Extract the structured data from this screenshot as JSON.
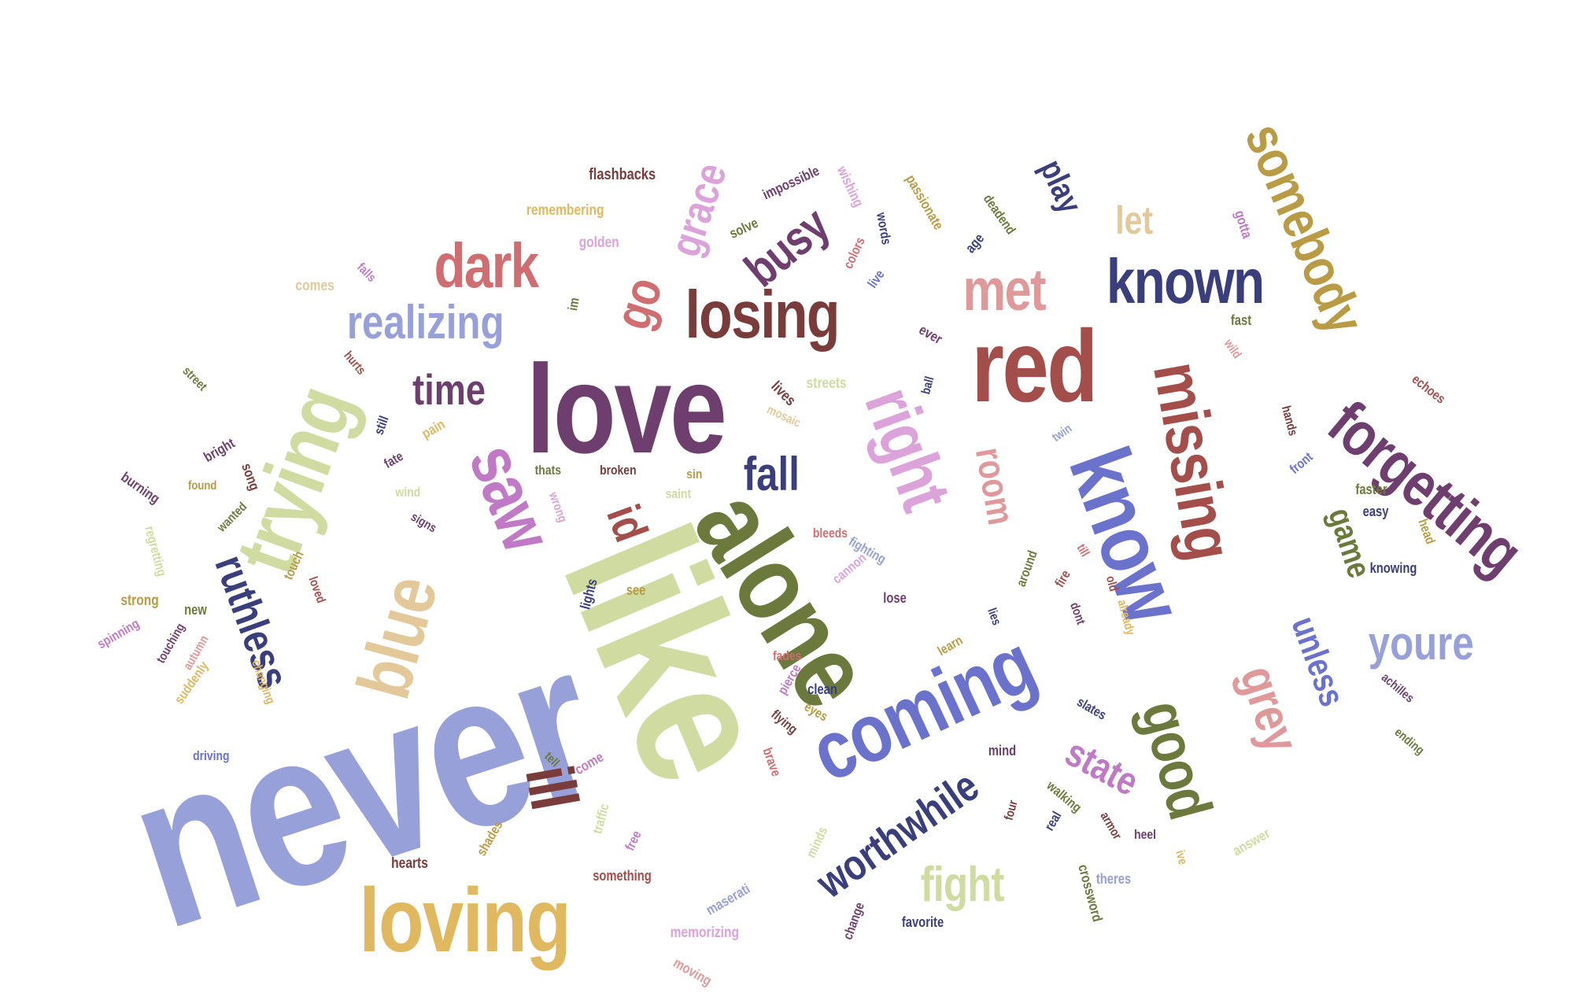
{
  "word_cloud": {
    "palette": {
      "periwinkle": "#97a0d8",
      "sage": "#cfdba0",
      "mustard": "#e0b860",
      "olive": "#6b7a3c",
      "navy": "#3a3f7c",
      "brick": "#a34e4a",
      "plum": "#6e3f6e",
      "orchid": "#c07ac5",
      "rose": "#e0999b",
      "tan": "#e3c89a",
      "lilac": "#dba3d9",
      "maroon": "#7a3b3b",
      "blue": "#6a72cc",
      "gold": "#b89b44",
      "coral": "#d06d70"
    },
    "words": [
      {
        "text": "never",
        "color": "#97a0d8"
      },
      {
        "text": "like",
        "color": "#cfdba0"
      },
      {
        "text": "loving",
        "color": "#e0b860"
      },
      {
        "text": "alone",
        "color": "#6b7a3c"
      },
      {
        "text": "love",
        "color": "#6e3f6e"
      },
      {
        "text": "red",
        "color": "#a34e4a"
      },
      {
        "text": "known",
        "color": "#3a3f7c"
      },
      {
        "text": "somebody",
        "color": "#b89b44"
      },
      {
        "text": "forgetting",
        "color": "#6e3f6e"
      },
      {
        "text": "know",
        "color": "#6a72cc"
      },
      {
        "text": "missing",
        "color": "#a34e4a"
      },
      {
        "text": "trying",
        "color": "#cfdba0"
      },
      {
        "text": "coming",
        "color": "#6a72cc"
      },
      {
        "text": "losing",
        "color": "#7a3b3b"
      },
      {
        "text": "right",
        "color": "#dba3d9"
      },
      {
        "text": "saw",
        "color": "#c07ac5"
      },
      {
        "text": "dark",
        "color": "#d06d70"
      },
      {
        "text": "blue",
        "color": "#e3c89a"
      },
      {
        "text": "good",
        "color": "#6b7a3c"
      },
      {
        "text": "grey",
        "color": "#e0999b"
      },
      {
        "text": "met",
        "color": "#e0999b"
      },
      {
        "text": "worthwhile",
        "color": "#3a3f7c"
      },
      {
        "text": "realizing",
        "color": "#97a0d8"
      },
      {
        "text": "ruthless",
        "color": "#3a3f7c"
      },
      {
        "text": "ill",
        "color": "#7a3b3b"
      },
      {
        "text": "fight",
        "color": "#cfdba0"
      },
      {
        "text": "youre",
        "color": "#97a0d8"
      },
      {
        "text": "state",
        "color": "#c07ac5"
      },
      {
        "text": "busy",
        "color": "#6e3f6e"
      },
      {
        "text": "grace",
        "color": "#dba3d9"
      },
      {
        "text": "go",
        "color": "#d06d70"
      },
      {
        "text": "play",
        "color": "#3a3f7c"
      },
      {
        "text": "room",
        "color": "#e0999b"
      },
      {
        "text": "unless",
        "color": "#6a72cc"
      },
      {
        "text": "game",
        "color": "#6b7a3c"
      },
      {
        "text": "time",
        "color": "#6e3f6e"
      },
      {
        "text": "fall",
        "color": "#3a3f7c"
      },
      {
        "text": "id",
        "color": "#a34e4a"
      },
      {
        "text": "let",
        "color": "#e3c89a"
      },
      {
        "text": "flashbacks",
        "color": "#7a3b3b"
      },
      {
        "text": "impossible",
        "color": "#6e3f6e"
      },
      {
        "text": "wishing",
        "color": "#dba3d9"
      },
      {
        "text": "passionate",
        "color": "#b89b44"
      },
      {
        "text": "remembering",
        "color": "#e0b860"
      },
      {
        "text": "solve",
        "color": "#6b7a3c"
      },
      {
        "text": "words",
        "color": "#3a3f7c"
      },
      {
        "text": "deadend",
        "color": "#6b7a3c"
      },
      {
        "text": "gotta",
        "color": "#c07ac5"
      },
      {
        "text": "golden",
        "color": "#dba3d9"
      },
      {
        "text": "colors",
        "color": "#d06d70"
      },
      {
        "text": "age",
        "color": "#3a3f7c"
      },
      {
        "text": "comes",
        "color": "#e3c89a"
      },
      {
        "text": "falls",
        "color": "#c07ac5"
      },
      {
        "text": "live",
        "color": "#6a72cc"
      },
      {
        "text": "im",
        "color": "#6b7a3c"
      },
      {
        "text": "fast",
        "color": "#6b7a3c"
      },
      {
        "text": "wild",
        "color": "#e0999b"
      },
      {
        "text": "ever",
        "color": "#6e3f6e"
      },
      {
        "text": "hurts",
        "color": "#a34e4a"
      },
      {
        "text": "street",
        "color": "#6b7a3c"
      },
      {
        "text": "ball",
        "color": "#3a3f7c"
      },
      {
        "text": "lives",
        "color": "#7a3b3b"
      },
      {
        "text": "streets",
        "color": "#cfdba0"
      },
      {
        "text": "echoes",
        "color": "#a34e4a"
      },
      {
        "text": "mosaic",
        "color": "#e3c89a"
      },
      {
        "text": "pain",
        "color": "#e0b860"
      },
      {
        "text": "still",
        "color": "#3a3f7c"
      },
      {
        "text": "hands",
        "color": "#7a3b3b"
      },
      {
        "text": "twin",
        "color": "#97a0d8"
      },
      {
        "text": "bright",
        "color": "#6e3f6e"
      },
      {
        "text": "song",
        "color": "#7a3b3b"
      },
      {
        "text": "fate",
        "color": "#6e3f6e"
      },
      {
        "text": "front",
        "color": "#6a72cc"
      },
      {
        "text": "burning",
        "color": "#6e3f6e"
      },
      {
        "text": "found",
        "color": "#b89b44"
      },
      {
        "text": "wind",
        "color": "#cfdba0"
      },
      {
        "text": "thats",
        "color": "#6b7a3c"
      },
      {
        "text": "broken",
        "color": "#7a3b3b"
      },
      {
        "text": "sin",
        "color": "#b89b44"
      },
      {
        "text": "saint",
        "color": "#cfdba0"
      },
      {
        "text": "faster",
        "color": "#6b7a3c"
      },
      {
        "text": "easy",
        "color": "#3a3f7c"
      },
      {
        "text": "head",
        "color": "#b89b44"
      },
      {
        "text": "wanted",
        "color": "#6b7a3c"
      },
      {
        "text": "wrong",
        "color": "#dba3d9"
      },
      {
        "text": "signs",
        "color": "#6e3f6e"
      },
      {
        "text": "regretting",
        "color": "#cfdba0"
      },
      {
        "text": "bleeds",
        "color": "#d06d70"
      },
      {
        "text": "fighting",
        "color": "#97a0d8"
      },
      {
        "text": "touch",
        "color": "#b89b44"
      },
      {
        "text": "cannon",
        "color": "#dba3d9"
      },
      {
        "text": "knowing",
        "color": "#3a3f7c"
      },
      {
        "text": "lights",
        "color": "#3a3f7c"
      },
      {
        "text": "around",
        "color": "#6b7a3c"
      },
      {
        "text": "fire",
        "color": "#a34e4a"
      },
      {
        "text": "till",
        "color": "#d06d70"
      },
      {
        "text": "old",
        "color": "#a34e4a"
      },
      {
        "text": "loved",
        "color": "#a34e4a"
      },
      {
        "text": "see",
        "color": "#b89b44"
      },
      {
        "text": "lose",
        "color": "#6e3f6e"
      },
      {
        "text": "strong",
        "color": "#b89b44"
      },
      {
        "text": "new",
        "color": "#6b7a3c"
      },
      {
        "text": "lies",
        "color": "#3a3f7c"
      },
      {
        "text": "dont",
        "color": "#6e3f6e"
      },
      {
        "text": "already",
        "color": "#e0b860"
      },
      {
        "text": "spinning",
        "color": "#c07ac5"
      },
      {
        "text": "touching",
        "color": "#6e3f6e"
      },
      {
        "text": "autumn",
        "color": "#e0999b"
      },
      {
        "text": "learn",
        "color": "#b89b44"
      },
      {
        "text": "fades",
        "color": "#d06d70"
      },
      {
        "text": "pierce",
        "color": "#c07ac5"
      },
      {
        "text": "clean",
        "color": "#3a3f7c"
      },
      {
        "text": "achilles",
        "color": "#6e3f6e"
      },
      {
        "text": "suddenly",
        "color": "#e0b860"
      },
      {
        "text": "changing",
        "color": "#e0b860"
      },
      {
        "text": "eyes",
        "color": "#b89b44"
      },
      {
        "text": "slates",
        "color": "#3a3f7c"
      },
      {
        "text": "ending",
        "color": "#6b7a3c"
      },
      {
        "text": "flying",
        "color": "#7a3b3b"
      },
      {
        "text": "driving",
        "color": "#6a72cc"
      },
      {
        "text": "brave",
        "color": "#d06d70"
      },
      {
        "text": "mind",
        "color": "#6e3f6e"
      },
      {
        "text": "tell",
        "color": "#6b7a3c"
      },
      {
        "text": "come",
        "color": "#c07ac5"
      },
      {
        "text": "walking",
        "color": "#6b7a3c"
      },
      {
        "text": "four",
        "color": "#7a3b3b"
      },
      {
        "text": "real",
        "color": "#3a3f7c"
      },
      {
        "text": "armor",
        "color": "#7a3b3b"
      },
      {
        "text": "heel",
        "color": "#6e3f6e"
      },
      {
        "text": "answer",
        "color": "#cfdba0"
      },
      {
        "text": "shades",
        "color": "#b89b44"
      },
      {
        "text": "traffic",
        "color": "#cfdba0"
      },
      {
        "text": "free",
        "color": "#c07ac5"
      },
      {
        "text": "minds",
        "color": "#cfdba0"
      },
      {
        "text": "hearts",
        "color": "#7a3b3b"
      },
      {
        "text": "ive",
        "color": "#e0b860"
      },
      {
        "text": "something",
        "color": "#a34e4a"
      },
      {
        "text": "crossword",
        "color": "#6b7a3c"
      },
      {
        "text": "theres",
        "color": "#97a0d8"
      },
      {
        "text": "maserati",
        "color": "#97a0d8"
      },
      {
        "text": "change",
        "color": "#6e3f6e"
      },
      {
        "text": "favorite",
        "color": "#3a3f7c"
      },
      {
        "text": "memorizing",
        "color": "#dba3d9"
      },
      {
        "text": "moving",
        "color": "#e0999b"
      }
    ]
  }
}
